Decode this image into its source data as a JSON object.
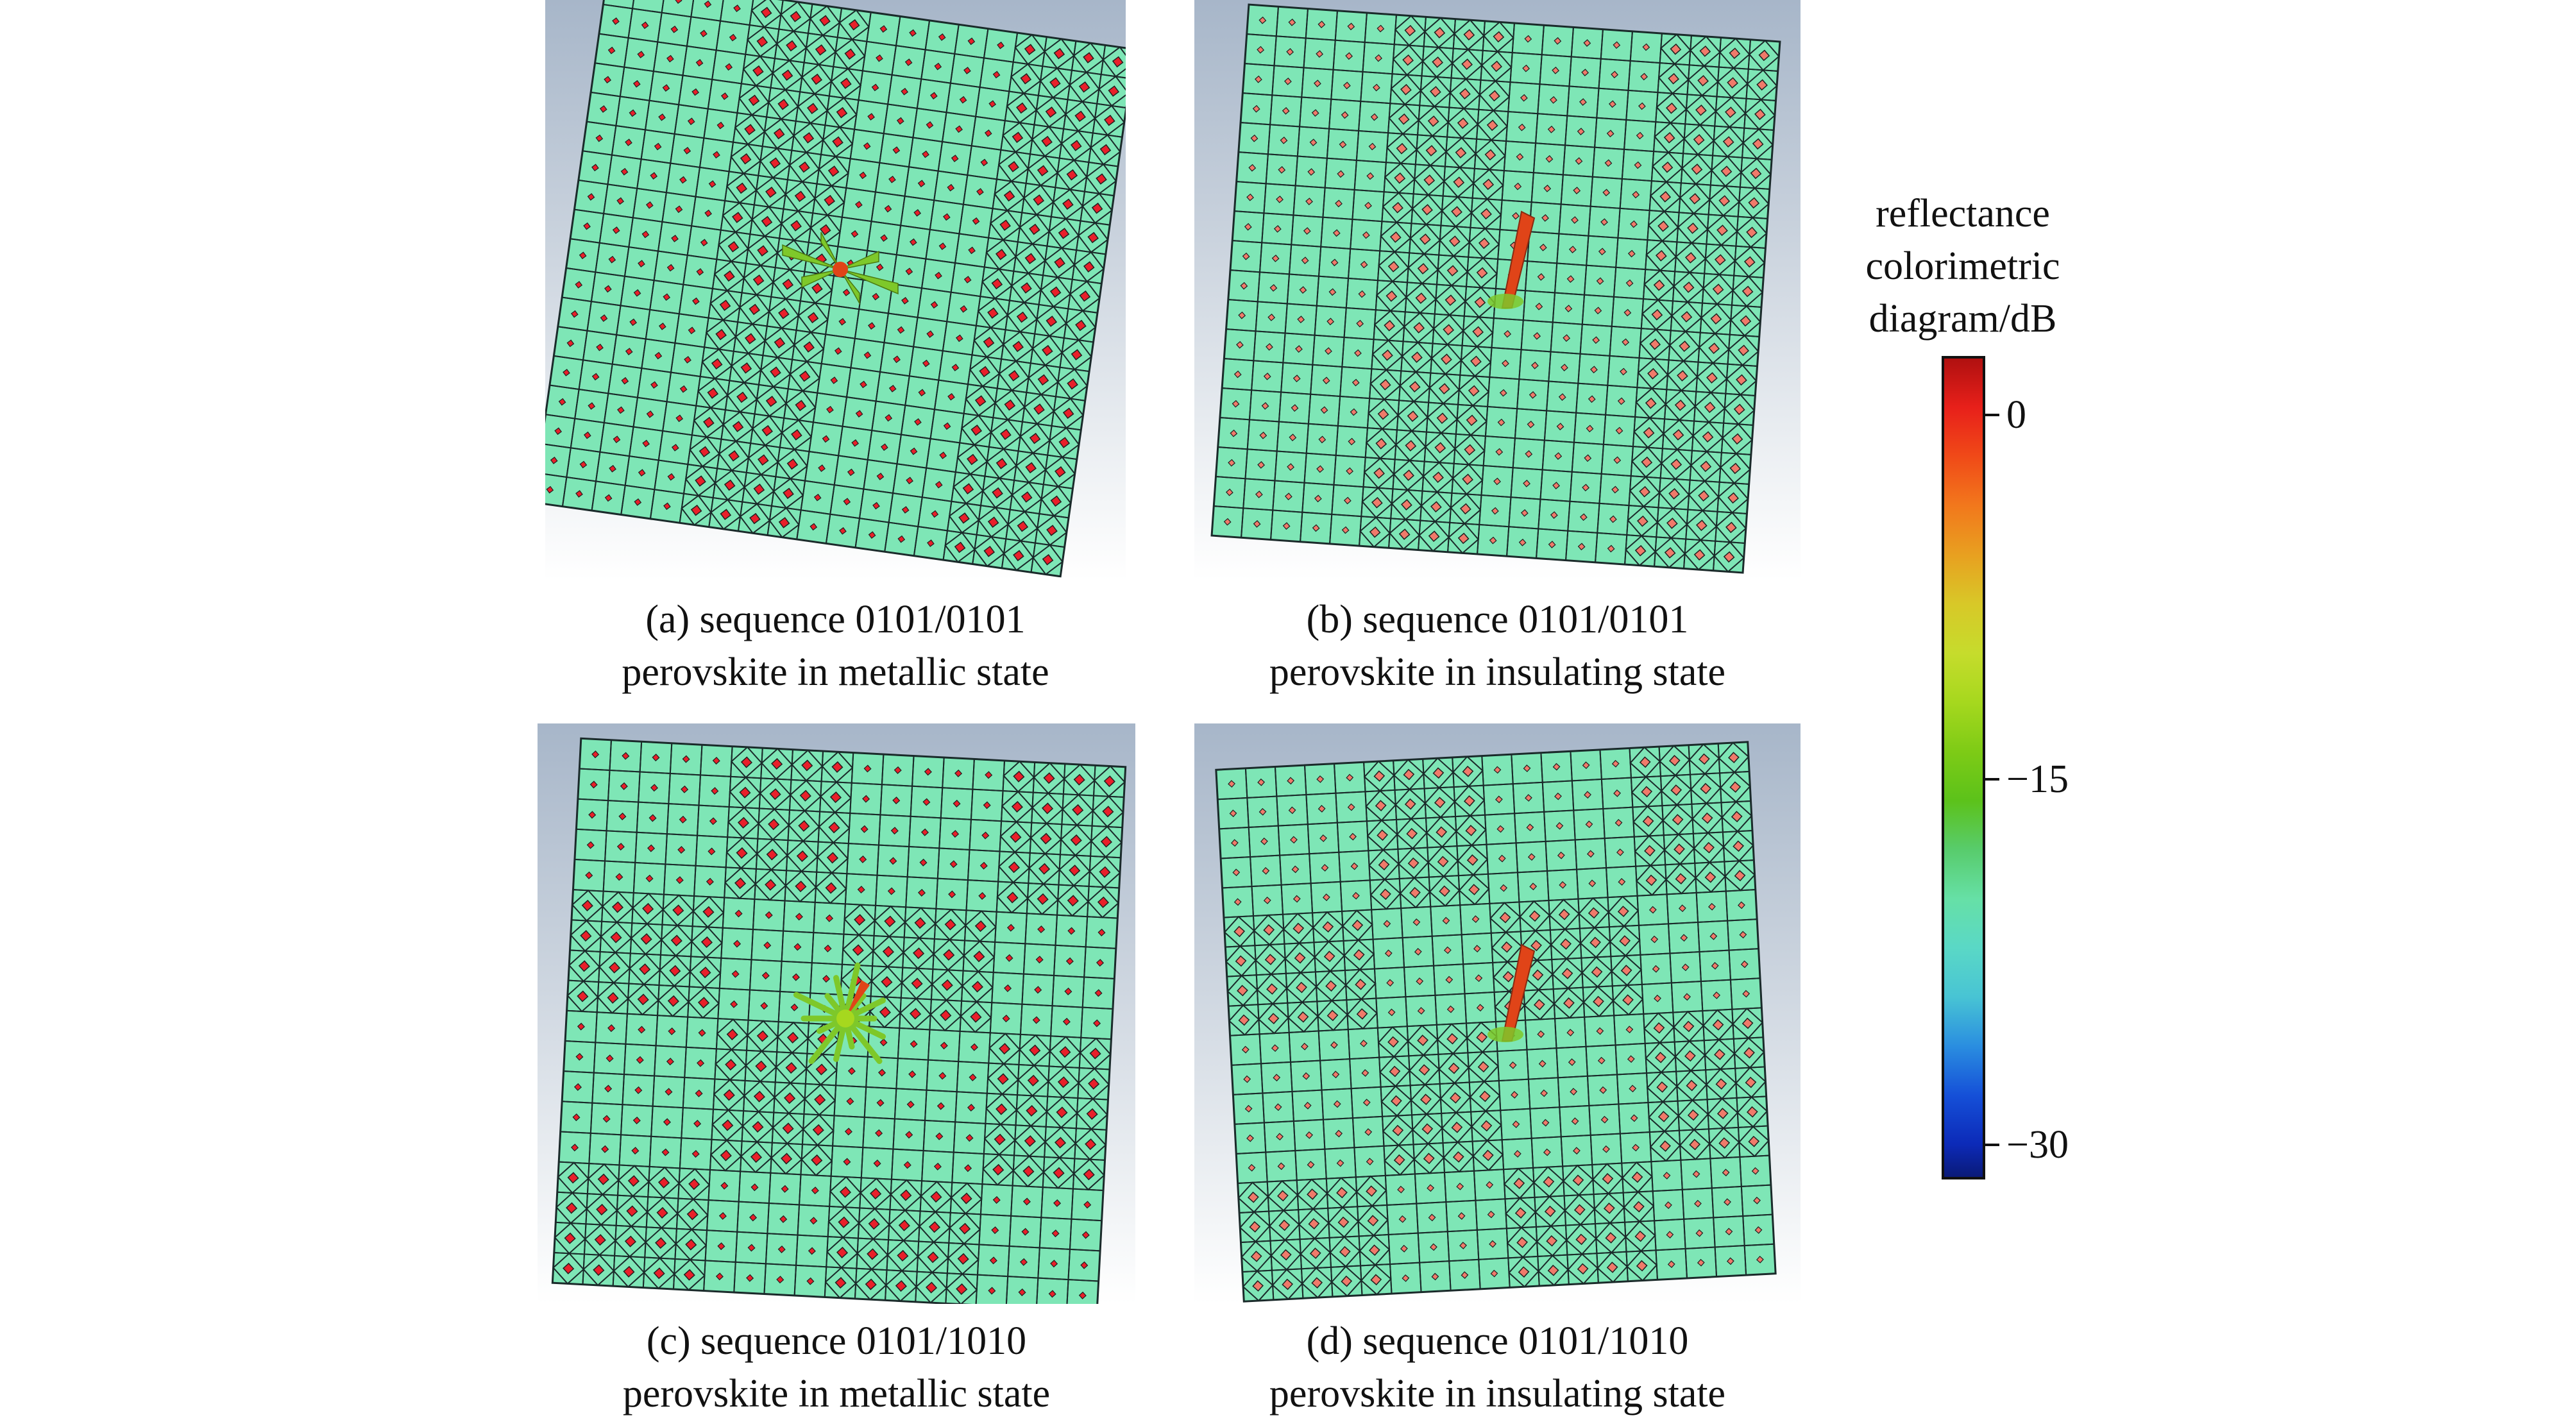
{
  "panels": [
    {
      "id": "a",
      "caption_line1": "(a) sequence 0101/0101",
      "caption_line2": "perovskite in metallic state",
      "sequence": "0101/0101",
      "state": "metallic"
    },
    {
      "id": "b",
      "caption_line1": "(b) sequence 0101/0101",
      "caption_line2": "perovskite in insulating state",
      "sequence": "0101/0101",
      "state": "insulating"
    },
    {
      "id": "c",
      "caption_line1": "(c) sequence 0101/1010",
      "caption_line2": "perovskite in metallic state",
      "sequence": "0101/1010",
      "state": "metallic"
    },
    {
      "id": "d",
      "caption_line1": "(d) sequence 0101/1010",
      "caption_line2": "perovskite in insulating state",
      "sequence": "0101/1010",
      "state": "insulating"
    }
  ],
  "legend": {
    "title_line1": "reflectance",
    "title_line2": "colorimetric",
    "title_line3": "diagram/dB",
    "ticks": [
      "0",
      "−15",
      "−30"
    ]
  },
  "colors": {
    "cell_fill": "#7ee6b6",
    "grid_line": "#1a2a2a",
    "dot_metallic": "#e8202a",
    "dot_insulating": "#f07a6a",
    "beam_green": "#7ec82a",
    "beam_red": "#e04418"
  }
}
